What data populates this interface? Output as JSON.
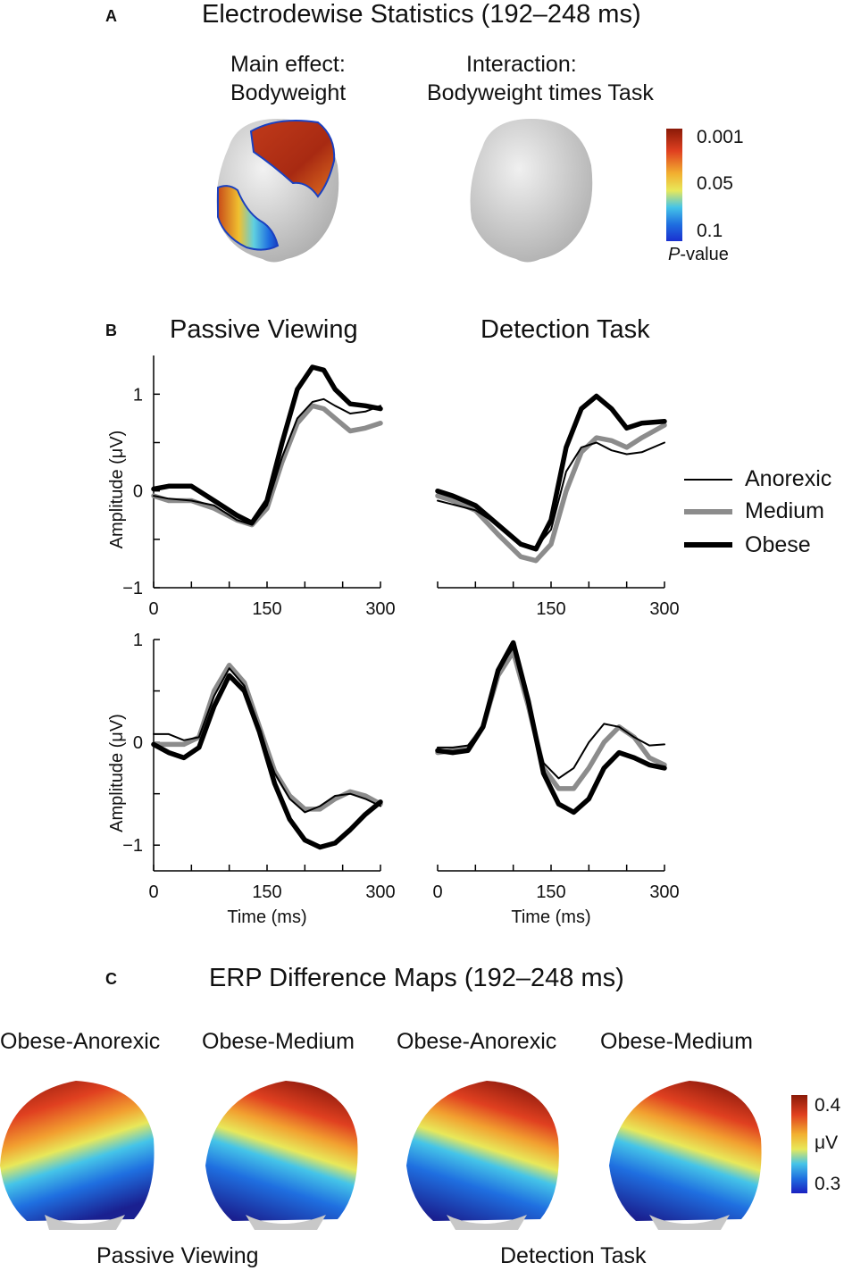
{
  "panel_a": {
    "letter": "A",
    "title": "Electrodewise Statistics (192–248 ms)",
    "main_effect_label_1": "Main effect:",
    "main_effect_label_2": "Bodyweight",
    "interaction_label_1": "Interaction:",
    "interaction_label_2": "Bodyweight times Task",
    "colorbar": {
      "ticks": [
        "0.001",
        "0.05",
        "0.1"
      ],
      "label_italic": "P",
      "label_rest": "-value"
    }
  },
  "panel_b": {
    "letter": "B",
    "col_titles": [
      "Passive Viewing",
      "Detection Task"
    ],
    "ylabel": "Amplitude (μV)",
    "xlabel": "Time (ms)",
    "legend": [
      "Anorexic",
      "Medium",
      "Obese"
    ]
  },
  "panel_c": {
    "letter": "C",
    "title": "ERP Difference Maps (192–248 ms)",
    "map_labels": [
      "Obese-Anorexic",
      "Obese-Medium",
      "Obese-Anorexic",
      "Obese-Medium"
    ],
    "group_labels": [
      "Passive Viewing",
      "Detection Task"
    ],
    "colorbar": {
      "top": "0.4",
      "mid": "μV",
      "bottom": "0.3"
    }
  },
  "colors": {
    "anorexic": "#000000",
    "medium": "#8c8c8c",
    "obese": "#000000",
    "colormap": [
      "#2020a0",
      "#1f6fe0",
      "#45c4e8",
      "#e8e85a",
      "#f2a030",
      "#e04020",
      "#9a2010"
    ]
  },
  "chart_data": [
    {
      "type": "line",
      "title": "Passive Viewing",
      "xlabel": "",
      "ylabel": "Amplitude (μV)",
      "xlim": [
        0,
        300
      ],
      "ylim": [
        -1,
        1.4
      ],
      "xticks": [
        "0",
        "150",
        "300"
      ],
      "yticks": [
        "-1",
        "0",
        "1"
      ],
      "series": [
        {
          "name": "Anorexic",
          "x": [
            0,
            20,
            50,
            80,
            110,
            130,
            150,
            170,
            190,
            210,
            225,
            240,
            260,
            280,
            300
          ],
          "y": [
            -0.05,
            -0.08,
            -0.1,
            -0.15,
            -0.3,
            -0.35,
            -0.15,
            0.35,
            0.75,
            0.92,
            0.95,
            0.88,
            0.8,
            0.82,
            0.88
          ]
        },
        {
          "name": "Medium",
          "x": [
            0,
            20,
            50,
            80,
            110,
            130,
            150,
            170,
            190,
            210,
            225,
            240,
            260,
            280,
            300
          ],
          "y": [
            -0.05,
            -0.1,
            -0.1,
            -0.18,
            -0.3,
            -0.35,
            -0.18,
            0.3,
            0.7,
            0.88,
            0.85,
            0.75,
            0.62,
            0.65,
            0.7
          ]
        },
        {
          "name": "Obese",
          "x": [
            0,
            20,
            50,
            80,
            110,
            130,
            150,
            170,
            190,
            210,
            225,
            240,
            260,
            280,
            300
          ],
          "y": [
            0.02,
            0.05,
            0.05,
            -0.1,
            -0.25,
            -0.33,
            -0.1,
            0.5,
            1.05,
            1.28,
            1.25,
            1.05,
            0.9,
            0.88,
            0.85
          ]
        }
      ]
    },
    {
      "type": "line",
      "title": "Detection Task",
      "xlabel": "",
      "ylabel": "",
      "xlim": [
        0,
        300
      ],
      "ylim": [
        -1,
        1.4
      ],
      "xticks": [
        "150",
        "300"
      ],
      "yticks": [],
      "series": [
        {
          "name": "Anorexic",
          "x": [
            0,
            20,
            50,
            80,
            110,
            130,
            150,
            170,
            190,
            210,
            230,
            250,
            270,
            300
          ],
          "y": [
            -0.1,
            -0.14,
            -0.2,
            -0.35,
            -0.55,
            -0.58,
            -0.4,
            0.2,
            0.45,
            0.5,
            0.42,
            0.38,
            0.4,
            0.5
          ]
        },
        {
          "name": "Medium",
          "x": [
            0,
            20,
            50,
            80,
            110,
            130,
            150,
            170,
            190,
            210,
            230,
            250,
            270,
            300
          ],
          "y": [
            -0.05,
            -0.1,
            -0.2,
            -0.45,
            -0.68,
            -0.72,
            -0.55,
            0.0,
            0.4,
            0.55,
            0.52,
            0.45,
            0.55,
            0.68
          ]
        },
        {
          "name": "Obese",
          "x": [
            0,
            20,
            50,
            80,
            110,
            130,
            150,
            170,
            190,
            210,
            230,
            250,
            270,
            300
          ],
          "y": [
            0.0,
            -0.05,
            -0.15,
            -0.35,
            -0.55,
            -0.6,
            -0.3,
            0.45,
            0.85,
            0.98,
            0.85,
            0.65,
            0.7,
            0.72
          ]
        }
      ]
    },
    {
      "type": "line",
      "title": "",
      "xlabel": "Time (ms)",
      "ylabel": "Amplitude (μV)",
      "xlim": [
        0,
        300
      ],
      "ylim": [
        -1.25,
        1
      ],
      "xticks": [
        "0",
        "150",
        "300"
      ],
      "yticks": [
        "-1",
        "0",
        "1"
      ],
      "series": [
        {
          "name": "Anorexic",
          "x": [
            0,
            20,
            40,
            60,
            80,
            100,
            120,
            140,
            160,
            180,
            200,
            220,
            240,
            260,
            280,
            300
          ],
          "y": [
            0.08,
            0.08,
            0.02,
            0.05,
            0.45,
            0.72,
            0.55,
            0.1,
            -0.3,
            -0.55,
            -0.68,
            -0.62,
            -0.52,
            -0.5,
            -0.55,
            -0.62
          ]
        },
        {
          "name": "Medium",
          "x": [
            0,
            20,
            40,
            60,
            80,
            100,
            120,
            140,
            160,
            180,
            200,
            220,
            240,
            260,
            280,
            300
          ],
          "y": [
            -0.02,
            -0.02,
            -0.02,
            0.05,
            0.5,
            0.75,
            0.58,
            0.15,
            -0.28,
            -0.52,
            -0.65,
            -0.65,
            -0.55,
            -0.48,
            -0.52,
            -0.6
          ]
        },
        {
          "name": "Obese",
          "x": [
            0,
            20,
            40,
            60,
            80,
            100,
            120,
            140,
            160,
            180,
            200,
            220,
            240,
            260,
            280,
            300
          ],
          "y": [
            -0.02,
            -0.1,
            -0.15,
            -0.05,
            0.35,
            0.65,
            0.5,
            0.1,
            -0.4,
            -0.75,
            -0.95,
            -1.02,
            -0.98,
            -0.85,
            -0.7,
            -0.58
          ]
        }
      ]
    },
    {
      "type": "line",
      "title": "",
      "xlabel": "Time (ms)",
      "ylabel": "",
      "xlim": [
        0,
        300
      ],
      "ylim": [
        -1.25,
        1
      ],
      "xticks": [
        "0",
        "150",
        "300"
      ],
      "yticks": [],
      "series": [
        {
          "name": "Anorexic",
          "x": [
            0,
            20,
            40,
            60,
            80,
            100,
            120,
            140,
            160,
            180,
            200,
            220,
            240,
            260,
            280,
            300
          ],
          "y": [
            -0.05,
            -0.05,
            -0.03,
            0.15,
            0.7,
            0.92,
            0.4,
            -0.2,
            -0.35,
            -0.25,
            0.0,
            0.18,
            0.15,
            0.05,
            -0.03,
            -0.02
          ]
        },
        {
          "name": "Medium",
          "x": [
            0,
            20,
            40,
            60,
            80,
            100,
            120,
            140,
            160,
            180,
            200,
            220,
            240,
            260,
            280,
            300
          ],
          "y": [
            -0.1,
            -0.08,
            -0.06,
            0.15,
            0.65,
            0.88,
            0.35,
            -0.25,
            -0.45,
            -0.45,
            -0.25,
            0.0,
            0.15,
            0.05,
            -0.15,
            -0.22
          ]
        },
        {
          "name": "Obese",
          "x": [
            0,
            20,
            40,
            60,
            80,
            100,
            120,
            140,
            160,
            180,
            200,
            220,
            240,
            260,
            280,
            300
          ],
          "y": [
            -0.08,
            -0.1,
            -0.08,
            0.15,
            0.7,
            0.97,
            0.4,
            -0.3,
            -0.6,
            -0.68,
            -0.55,
            -0.25,
            -0.1,
            -0.15,
            -0.22,
            -0.25
          ]
        }
      ]
    }
  ]
}
